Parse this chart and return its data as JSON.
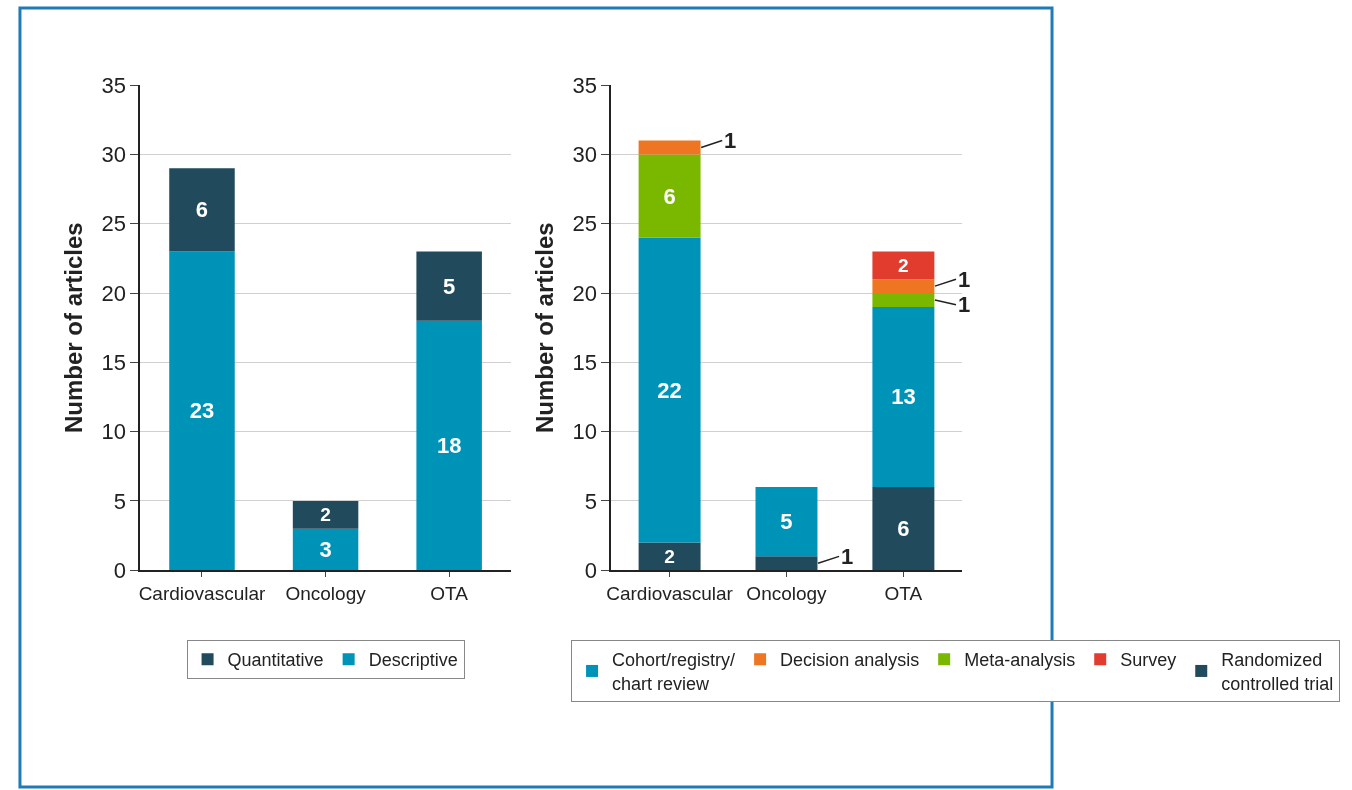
{
  "chart_data": [
    {
      "type": "bar",
      "stacked": true,
      "categories": [
        "Cardiovascular",
        "Oncology",
        "OTA"
      ],
      "ylabel": "Number of articles",
      "ylim": [
        0,
        35
      ],
      "yticks": [
        0,
        5,
        10,
        15,
        20,
        25,
        30,
        35
      ],
      "grid": "y",
      "legend": "bottom",
      "data_labels": true,
      "series": [
        {
          "name": "Descriptive",
          "color": "#0093b8",
          "values": [
            23,
            3,
            18
          ]
        },
        {
          "name": "Quantitative",
          "color": "#214a5c",
          "values": [
            6,
            2,
            5
          ]
        }
      ]
    },
    {
      "type": "bar",
      "stacked": true,
      "categories": [
        "Cardiovascular",
        "Oncology",
        "OTA"
      ],
      "ylabel": "Number of articles",
      "ylim": [
        0,
        35
      ],
      "yticks": [
        0,
        5,
        10,
        15,
        20,
        25,
        30,
        35
      ],
      "grid": "y",
      "legend": "bottom",
      "data_labels": true,
      "series": [
        {
          "name": "Randomized controlled trial",
          "color": "#214a5c",
          "values": [
            2,
            1,
            6
          ]
        },
        {
          "name": "Cohort/registry/ chart review",
          "color": "#0093b8",
          "values": [
            22,
            5,
            13
          ]
        },
        {
          "name": "Meta-analysis",
          "color": "#7ab800",
          "values": [
            6,
            null,
            1
          ]
        },
        {
          "name": "Decision analysis",
          "color": "#ee7623",
          "values": [
            1,
            null,
            1
          ]
        },
        {
          "name": "Survey",
          "color": "#e23c2e",
          "values": [
            null,
            null,
            2
          ]
        }
      ]
    }
  ]
}
